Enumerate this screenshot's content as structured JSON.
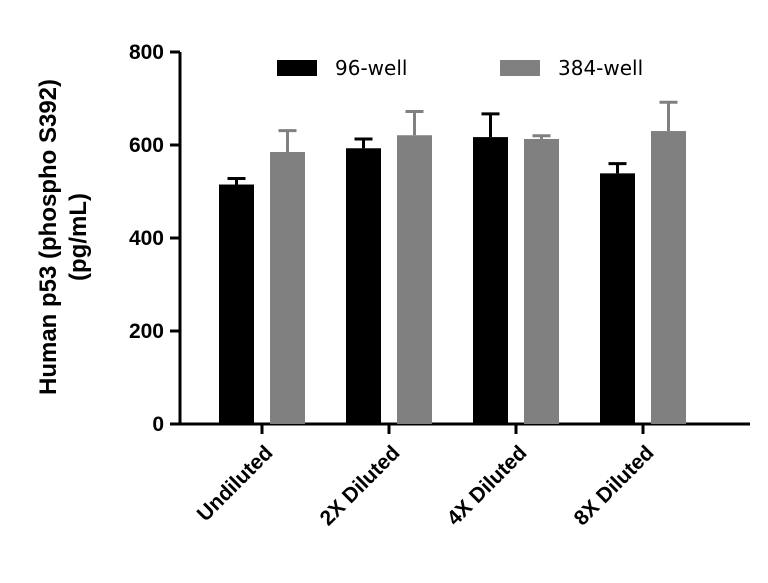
{
  "chart_data": {
    "type": "bar",
    "title": "",
    "xlabel": "",
    "ylabel_line1": "Human p53 (phospho S392)",
    "ylabel_line2": "(pg/mL)",
    "ylim": [
      0,
      800
    ],
    "yticks": [
      0,
      200,
      400,
      600,
      800
    ],
    "yticks_labels": [
      "0",
      "200",
      "400",
      "600",
      "800"
    ],
    "categories": [
      "Undiluted",
      "2X Diluted",
      "4X Diluted",
      "8X Diluted"
    ],
    "series": [
      {
        "name": "96-well",
        "color": "#000000",
        "values": [
          515,
          593,
          617,
          539
        ],
        "errors": [
          13,
          20,
          50,
          21
        ]
      },
      {
        "name": "384-well",
        "color": "#808080",
        "values": [
          585,
          621,
          613,
          630
        ],
        "errors": [
          46,
          51,
          7,
          62
        ]
      }
    ],
    "legend_position": "top"
  }
}
